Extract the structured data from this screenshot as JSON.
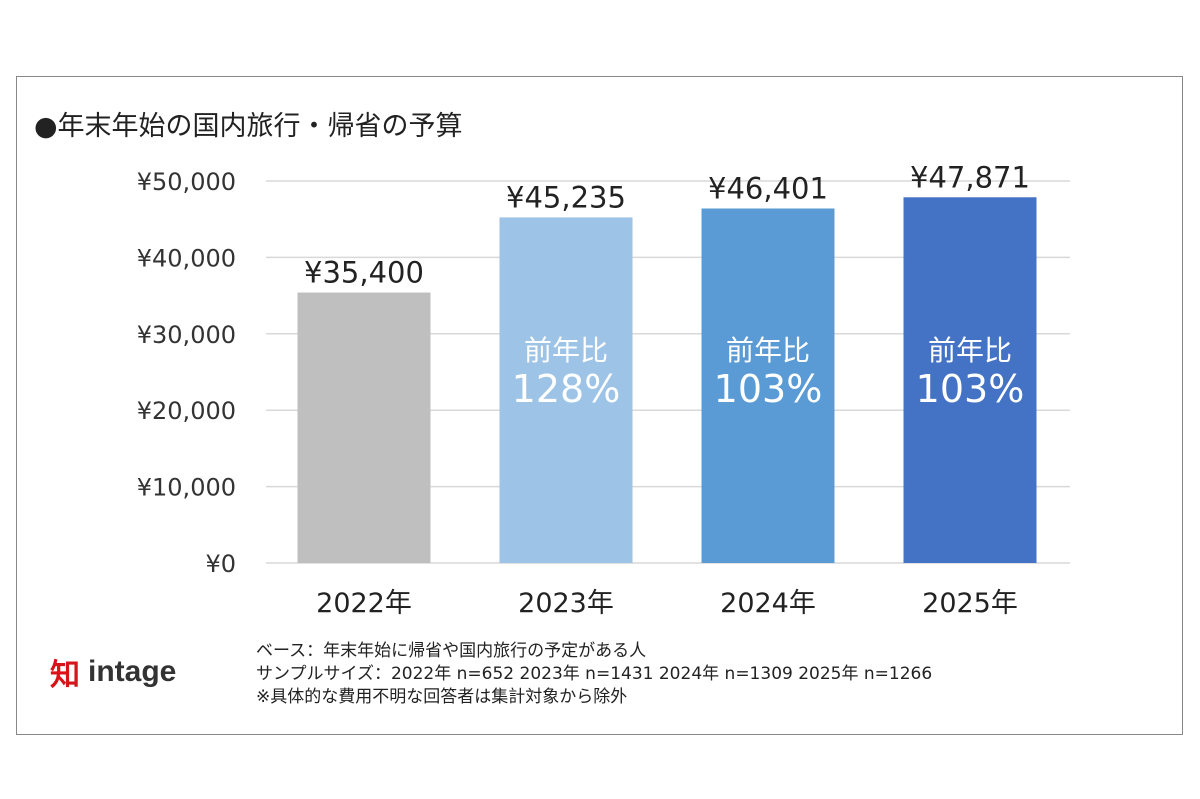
{
  "chart_data": {
    "type": "bar",
    "title": "●年末年始の国内旅行・帰省の予算",
    "categories": [
      "2022年",
      "2023年",
      "2024年",
      "2025年"
    ],
    "values": [
      35400,
      45235,
      46401,
      47871
    ],
    "data_labels": [
      "¥35,400",
      "¥45,235",
      "¥46,401",
      "¥47,871"
    ],
    "inner_labels": [
      null,
      {
        "line1": "前年比",
        "line2": "128%"
      },
      {
        "line1": "前年比",
        "line2": "103%"
      },
      {
        "line1": "前年比",
        "line2": "103%"
      }
    ],
    "colors": [
      "#bfbfbf",
      "#9dc3e6",
      "#5b9bd5",
      "#4472c4"
    ],
    "ylim": [
      0,
      50000
    ],
    "yticks": [
      0,
      10000,
      20000,
      30000,
      40000,
      50000
    ],
    "ytick_labels": [
      "¥0",
      "¥10,000",
      "¥20,000",
      "¥30,000",
      "¥40,000",
      "¥50,000"
    ],
    "grid": true,
    "xlabel": "",
    "ylabel": ""
  },
  "notes": [
    "ベース：年末年始に帰省や国内旅行の予定がある人",
    "サンプルサイズ：2022年 n=652 2023年 n=1431 2024年 n=1309 2025年 n=1266",
    "※具体的な費用不明な回答者は集計対象から除外"
  ],
  "logo": {
    "mark": "知",
    "word": "intage"
  }
}
